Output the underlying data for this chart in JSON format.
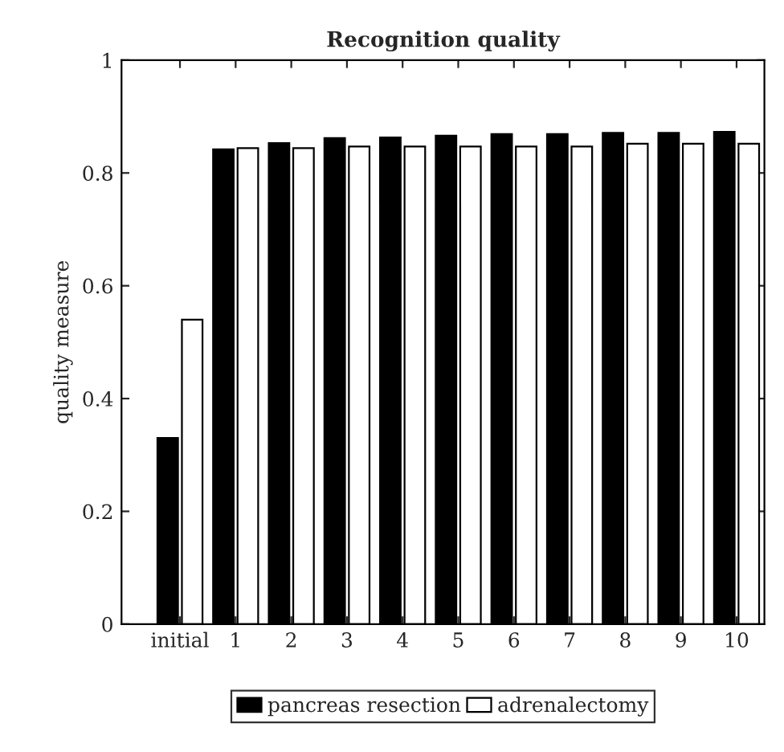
{
  "chart_data": {
    "type": "bar",
    "title": "Recognition quality",
    "ylabel": "quality measure",
    "categories": [
      "initial",
      "1",
      "2",
      "3",
      "4",
      "5",
      "6",
      "7",
      "8",
      "9",
      "10"
    ],
    "series": [
      {
        "name": "pancreas resection",
        "color": "#000000",
        "values": [
          0.33,
          0.842,
          0.853,
          0.862,
          0.863,
          0.866,
          0.869,
          0.869,
          0.871,
          0.871,
          0.873
        ]
      },
      {
        "name": "adrenalectomy",
        "color": "#ffffff",
        "values": [
          0.54,
          0.844,
          0.844,
          0.847,
          0.847,
          0.847,
          0.847,
          0.847,
          0.852,
          0.852,
          0.852
        ]
      }
    ],
    "ylim": [
      0,
      1
    ],
    "yticks": [
      0,
      0.2,
      0.4,
      0.6,
      0.8,
      1
    ],
    "grid": false,
    "legend": "bottom"
  }
}
